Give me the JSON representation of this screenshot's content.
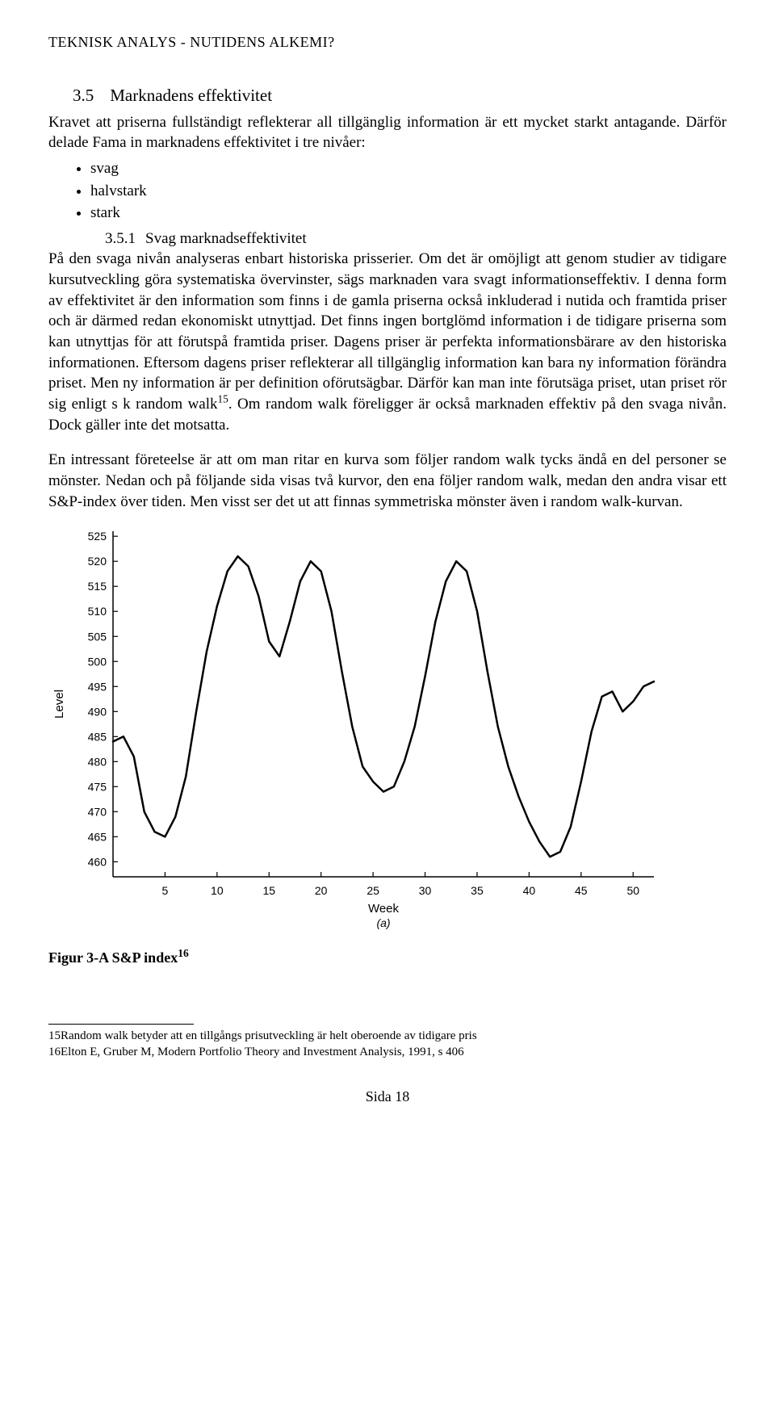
{
  "header": "TEKNISK ANALYS - NUTIDENS ALKEMI?",
  "section": {
    "num": "3.5",
    "title": "Marknadens effektivitet"
  },
  "intro": "Kravet att priserna fullständigt reflekterar all tillgänglig information är ett mycket starkt antagande. Därför delade Fama in marknadens effektivitet i tre nivåer:",
  "levels": [
    "svag",
    "halvstark",
    "stark"
  ],
  "subsection": {
    "num": "3.5.1",
    "title": "Svag marknadseffektivitet"
  },
  "body1_a": "På den svaga nivån analyseras enbart historiska prisserier. Om det är omöjligt att genom studier av tidigare kursutveckling göra systematiska övervinster, sägs marknaden vara svagt informationseffektiv. I denna form av effektivitet är den information som finns i de gamla priserna också inkluderad i nutida och framtida priser och är därmed redan ekonomiskt utnyttjad. Det finns ingen bortglömd information i de tidigare priserna som kan utnyttjas för att förutspå framtida priser. Dagens priser är perfekta informationsbärare av den historiska informationen. Eftersom dagens priser reflekterar all tillgänglig information kan bara ny information förändra priset. Men ny information är per definition oförutsägbar. Därför kan man inte förutsäga priset, utan priset rör sig enligt s k random walk",
  "fn15": "15",
  "body1_b": ". Om random walk föreligger är också marknaden effektiv på den svaga nivån. Dock gäller inte det motsatta.",
  "body2": "En intressant företeelse är att om man ritar en kurva som följer random walk tycks ändå en del personer se mönster. Nedan och på följande sida visas två kurvor, den ena följer random walk, medan den andra visar ett S&P-index över tiden. Men visst ser det ut att finnas symmetriska mönster även i random walk-kurvan.",
  "chart": {
    "type": "line",
    "ylabel": "Level",
    "xlabel": "Week",
    "sublabel": "(a)",
    "ylim": [
      457,
      526
    ],
    "yticks": [
      460,
      465,
      470,
      475,
      480,
      485,
      490,
      495,
      500,
      505,
      510,
      515,
      520,
      525
    ],
    "xlim": [
      0,
      52
    ],
    "xticks": [
      5,
      10,
      15,
      20,
      25,
      30,
      35,
      40,
      45,
      50
    ],
    "line_color": "#000000",
    "line_width": 2.5,
    "background_color": "#ffffff",
    "axis_color": "#000000",
    "tick_fontsize": 14,
    "label_fontsize": 15,
    "data": [
      [
        0,
        484
      ],
      [
        1,
        485
      ],
      [
        2,
        481
      ],
      [
        3,
        470
      ],
      [
        4,
        466
      ],
      [
        5,
        465
      ],
      [
        6,
        469
      ],
      [
        7,
        477
      ],
      [
        8,
        490
      ],
      [
        9,
        502
      ],
      [
        10,
        511
      ],
      [
        11,
        518
      ],
      [
        12,
        521
      ],
      [
        13,
        519
      ],
      [
        14,
        513
      ],
      [
        15,
        504
      ],
      [
        16,
        501
      ],
      [
        17,
        508
      ],
      [
        18,
        516
      ],
      [
        19,
        520
      ],
      [
        20,
        518
      ],
      [
        21,
        510
      ],
      [
        22,
        498
      ],
      [
        23,
        487
      ],
      [
        24,
        479
      ],
      [
        25,
        476
      ],
      [
        26,
        474
      ],
      [
        27,
        475
      ],
      [
        28,
        480
      ],
      [
        29,
        487
      ],
      [
        30,
        497
      ],
      [
        31,
        508
      ],
      [
        32,
        516
      ],
      [
        33,
        520
      ],
      [
        34,
        518
      ],
      [
        35,
        510
      ],
      [
        36,
        498
      ],
      [
        37,
        487
      ],
      [
        38,
        479
      ],
      [
        39,
        473
      ],
      [
        40,
        468
      ],
      [
        41,
        464
      ],
      [
        42,
        461
      ],
      [
        43,
        462
      ],
      [
        44,
        467
      ],
      [
        45,
        476
      ],
      [
        46,
        486
      ],
      [
        47,
        493
      ],
      [
        48,
        494
      ],
      [
        49,
        490
      ],
      [
        50,
        492
      ],
      [
        51,
        495
      ],
      [
        52,
        496
      ]
    ]
  },
  "figure_caption_a": "Figur 3-A S&P index",
  "fn16": "16",
  "footnotes": {
    "f15": "15Random walk betyder att en tillgångs prisutveckling är helt oberoende av tidigare pris",
    "f16": "16Elton E, Gruber M, Modern Portfolio Theory and Investment Analysis, 1991, s 406"
  },
  "page": "Sida 18"
}
